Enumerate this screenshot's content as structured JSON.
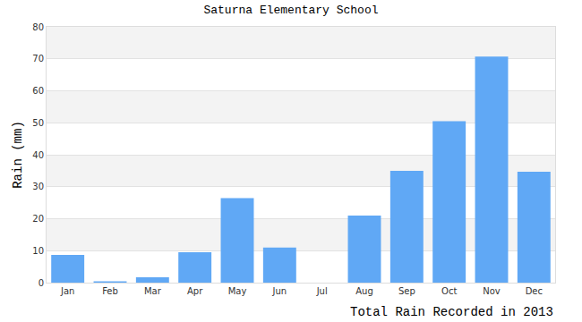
{
  "chart_data": {
    "type": "bar",
    "title": "Saturna Elementary School",
    "ylabel": "Rain (mm)",
    "xlabel": "Total Rain Recorded in 2013",
    "categories": [
      "Jan",
      "Feb",
      "Mar",
      "Apr",
      "May",
      "Jun",
      "Jul",
      "Aug",
      "Sep",
      "Oct",
      "Nov",
      "Dec"
    ],
    "values": [
      8.7,
      0.4,
      1.7,
      9.5,
      26.4,
      11,
      0,
      21,
      35,
      50.5,
      70.7,
      34.7
    ],
    "color": "#60a8f5",
    "ylim": [
      0,
      80
    ],
    "yticks": [
      0,
      10,
      20,
      30,
      40,
      50,
      60,
      70,
      80
    ],
    "grid": true
  }
}
